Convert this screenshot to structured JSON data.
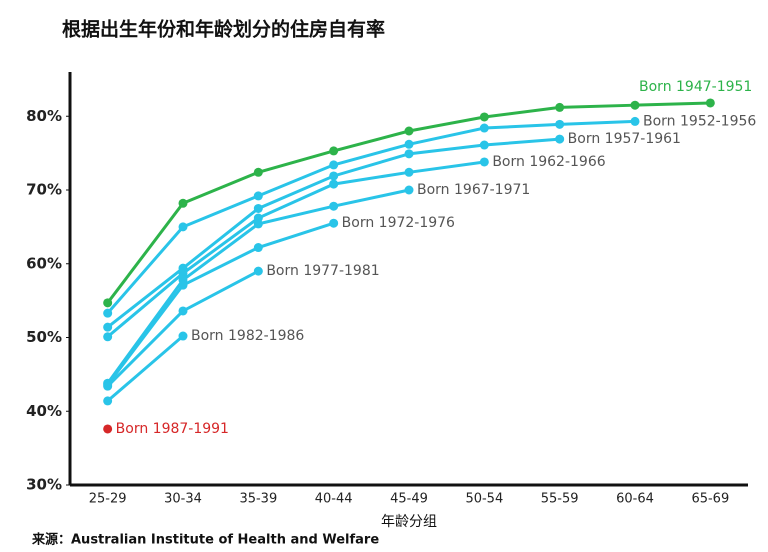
{
  "chart_data": {
    "type": "line",
    "title": "根据出生年份和年龄划分的住房自有率",
    "x_label": "年龄分组",
    "source": "来源：Australian Institute of Health and Welfare",
    "categories": [
      "25-29",
      "30-34",
      "35-39",
      "40-44",
      "45-49",
      "50-54",
      "55-59",
      "60-64",
      "65-69"
    ],
    "ylim": [
      30,
      86
    ],
    "yticks": [
      {
        "value": 30,
        "label": "30%"
      },
      {
        "value": 40,
        "label": "40%"
      },
      {
        "value": 50,
        "label": "50%"
      },
      {
        "value": 60,
        "label": "60%"
      },
      {
        "value": 70,
        "label": "70%"
      },
      {
        "value": 80,
        "label": "80%"
      }
    ],
    "grid": false,
    "series": [
      {
        "name": "Born 1947-1951",
        "color": "#2db34a",
        "values": [
          54.7,
          68.2,
          72.4,
          75.3,
          78.0,
          79.9,
          81.2,
          81.5,
          81.8
        ]
      },
      {
        "name": "Born 1952-1956",
        "color": "#29c4e8",
        "values": [
          53.3,
          65.0,
          69.2,
          73.4,
          76.2,
          78.4,
          78.9,
          79.3,
          null
        ]
      },
      {
        "name": "Born 1957-1961",
        "color": "#29c4e8",
        "values": [
          51.4,
          59.4,
          67.5,
          71.9,
          74.9,
          76.1,
          76.9,
          null,
          null
        ]
      },
      {
        "name": "Born 1962-1966",
        "color": "#29c4e8",
        "values": [
          50.1,
          58.7,
          66.2,
          70.8,
          72.4,
          73.8,
          null,
          null,
          null
        ]
      },
      {
        "name": "Born 1967-1971",
        "color": "#29c4e8",
        "values": [
          43.8,
          57.8,
          65.4,
          67.8,
          70.0,
          null,
          null,
          null,
          null
        ]
      },
      {
        "name": "Born 1972-1976",
        "color": "#29c4e8",
        "values": [
          43.6,
          57.1,
          62.2,
          65.5,
          null,
          null,
          null,
          null,
          null
        ]
      },
      {
        "name": "Born 1977-1981",
        "color": "#29c4e8",
        "values": [
          43.4,
          53.6,
          59.0,
          null,
          null,
          null,
          null,
          null,
          null
        ]
      },
      {
        "name": "Born 1982-1986",
        "color": "#29c4e8",
        "values": [
          41.4,
          50.2,
          null,
          null,
          null,
          null,
          null,
          null,
          null
        ]
      },
      {
        "name": "Born 1987-1991",
        "color": "#d62728",
        "values": [
          37.6,
          null,
          null,
          null,
          null,
          null,
          null,
          null,
          null
        ]
      }
    ]
  }
}
